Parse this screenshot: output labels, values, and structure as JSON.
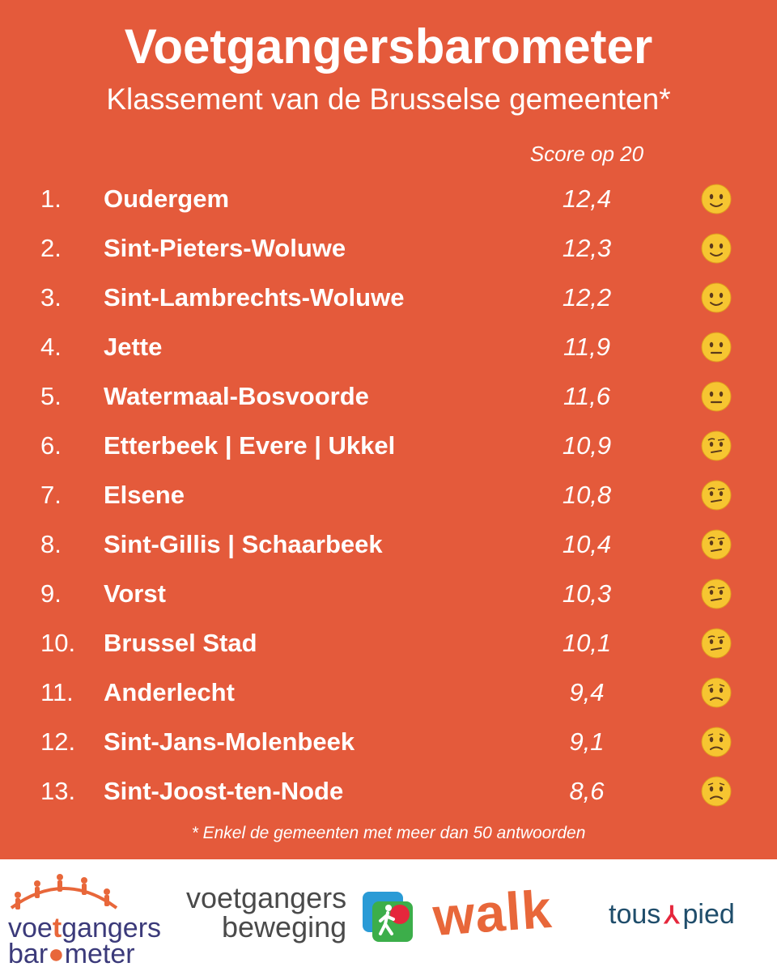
{
  "header": {
    "title": "Voetgangersbarometer",
    "subtitle": "Klassement van de Brusselse gemeenten*",
    "score_label": "Score op 20"
  },
  "footnote": "* Enkel de gemeenten met meer dan 50 antwoorden",
  "colors": {
    "background": "#e45a3b",
    "text": "#ffffff",
    "emoji_face": "#f6c531"
  },
  "chart_data": {
    "type": "table",
    "columns": [
      "",
      "",
      "Score op 20",
      ""
    ],
    "rows": [
      {
        "rank": "1.",
        "name": "Oudergem",
        "score": "12,4",
        "value": 12.4,
        "face": "slight-smile"
      },
      {
        "rank": "2.",
        "name": "Sint-Pieters-Woluwe",
        "score": "12,3",
        "value": 12.3,
        "face": "slight-smile"
      },
      {
        "rank": "3.",
        "name": "Sint-Lambrechts-Woluwe",
        "score": "12,2",
        "value": 12.2,
        "face": "slight-smile"
      },
      {
        "rank": "4.",
        "name": "Jette",
        "score": "11,9",
        "value": 11.9,
        "face": "neutral"
      },
      {
        "rank": "5.",
        "name": "Watermaal-Bosvoorde",
        "score": "11,6",
        "value": 11.6,
        "face": "neutral"
      },
      {
        "rank": "6.",
        "name": "Etterbeek | Evere | Ukkel",
        "score": "10,9",
        "value": 10.9,
        "face": "raised-eyebrow"
      },
      {
        "rank": "7.",
        "name": "Elsene",
        "score": "10,8",
        "value": 10.8,
        "face": "raised-eyebrow"
      },
      {
        "rank": "8.",
        "name": "Sint-Gillis | Schaarbeek",
        "score": "10,4",
        "value": 10.4,
        "face": "raised-eyebrow"
      },
      {
        "rank": "9.",
        "name": "Vorst",
        "score": "10,3",
        "value": 10.3,
        "face": "raised-eyebrow"
      },
      {
        "rank": "10.",
        "name": "Brussel Stad",
        "score": "10,1",
        "value": 10.1,
        "face": "raised-eyebrow"
      },
      {
        "rank": "11.",
        "name": "Anderlecht",
        "score": "9,4",
        "value": 9.4,
        "face": "worried"
      },
      {
        "rank": "12.",
        "name": "Sint-Jans-Molenbeek",
        "score": "9,1",
        "value": 9.1,
        "face": "worried"
      },
      {
        "rank": "13.",
        "name": "Sint-Joost-ten-Node",
        "score": "8,6",
        "value": 8.6,
        "face": "worried"
      }
    ]
  },
  "logos": {
    "barometer": [
      "voe",
      "gangers",
      "bar",
      "meter"
    ],
    "beweging": [
      "voetgangers",
      "beweging"
    ],
    "walk": "walk",
    "tous_a_pied": [
      "tous",
      "pied"
    ]
  }
}
